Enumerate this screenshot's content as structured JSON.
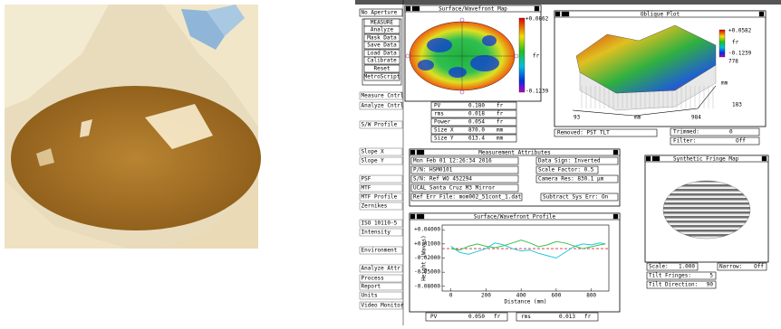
{
  "menu": [
    "No Aperture",
    "MEASURE",
    "Analyze",
    "Mask Data",
    "Save Data",
    "Load Data",
    "Calibrate",
    "Reset",
    "MetroScript",
    "Measure Cntrl",
    "Analyze Cntrl",
    "S/W Profile",
    "Slope X",
    "Slope Y",
    "PSF",
    "MTF",
    "MTF Profile",
    "Zernikes",
    "ISO 10110-5",
    "Intensity",
    "Environment",
    "Analyze Attr",
    "Process",
    "Report",
    "Units",
    "Video Monitor"
  ],
  "surface_map": {
    "title": "Surface/Wavefront Map",
    "scale_max": "+0.0862",
    "unit": "fr",
    "scale_min": "-0.1239"
  },
  "oblique_plot": {
    "title": "Oblique Plot",
    "scale_max": "+0.0582",
    "unit": "fr",
    "scale_min": "-0.1239",
    "z_value": "778",
    "z_unit": "mm",
    "y_value": "183",
    "x_min": "93",
    "x_unit": "mm",
    "x_max": "984"
  },
  "results": [
    [
      "PV",
      "0.180",
      "fr"
    ],
    [
      "rms",
      "0.018",
      "fr"
    ],
    [
      "Power",
      "0.054",
      "fr"
    ],
    [
      "Size X",
      "870.0",
      "mm"
    ],
    [
      "Size Y",
      "613.4",
      "mm"
    ]
  ],
  "status": {
    "removed": "Removed: PST TLT",
    "trimmed": "Trimmed:",
    "trimmed_value": "0",
    "filter": "Filter:",
    "filter_value": "Off"
  },
  "attributes": {
    "title": "Measurement Attributes",
    "date": "Mon Feb 01 12:26:34 2016",
    "data_sign": "Data Sign: Inverted",
    "part": "P/N: HSM0101",
    "scale_factor": "Scale Factor: 0.5",
    "serial": "S/N: Ref WO 452294",
    "camera_res": "Camera Res: 830.1 µm",
    "note": "UCAL Santa Cruz M3 Mirror",
    "ref_err": "Ref Err File: mom002_51cont_1.dat",
    "sys_err": "Subtract Sys Err: On"
  },
  "profile": {
    "title": "Surface/Wavefront Profile",
    "type": "line",
    "y_label": "Height (Waves)",
    "x_label": "Distance (mm)",
    "xlim": [
      -50,
      900
    ],
    "xticks": [
      0,
      200,
      400,
      600,
      800
    ],
    "ylim": [
      -0.09,
      0.05
    ],
    "yticks": [
      {
        "value": 0.04,
        "label": "+0.04000"
      },
      {
        "value": 0.01,
        "label": "+0.01000"
      },
      {
        "value": -0.02,
        "label": "-0.02000"
      },
      {
        "value": -0.05,
        "label": "-0.05000"
      },
      {
        "value": -0.08,
        "label": "-0.08000"
      }
    ],
    "x": [
      0,
      50,
      100,
      150,
      200,
      250,
      300,
      350,
      400,
      450,
      500,
      550,
      600,
      650,
      700,
      750,
      800,
      850,
      880
    ],
    "series": [
      {
        "color": "#22c8e0",
        "values": [
          0.005,
          -0.008,
          -0.012,
          -0.006,
          0.0,
          0.012,
          0.008,
          0.0,
          -0.005,
          -0.003,
          -0.01,
          -0.015,
          -0.02,
          -0.008,
          0.004,
          0.01,
          0.008,
          0.012,
          0.01
        ]
      },
      {
        "color": "#3cc050",
        "values": [
          0.0,
          -0.003,
          0.005,
          0.01,
          0.005,
          0.002,
          0.006,
          0.012,
          0.018,
          0.012,
          0.004,
          0.008,
          0.015,
          0.012,
          0.006,
          0.0,
          0.004,
          0.008,
          0.01
        ]
      }
    ],
    "reference_line": 0,
    "pv": [
      "PV",
      "0.050",
      "fr"
    ],
    "rms": [
      "rms",
      "0.013",
      "fr"
    ]
  },
  "fringe": {
    "title": "Synthetic Fringe Map",
    "scale": "Scale:",
    "scale_value": "1.000",
    "narrow": "Narrow:",
    "narrow_value": "Off",
    "tilt_fringes": "Tilt Fringes:",
    "tilt_fringes_value": "5",
    "tilt_direction": "Tilt Direction:",
    "tilt_direction_value": "90"
  }
}
